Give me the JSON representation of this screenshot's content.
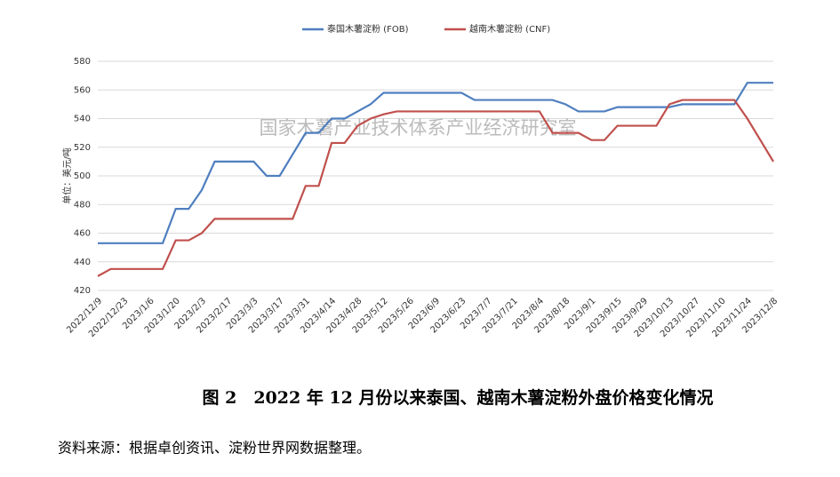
{
  "chart_data": {
    "type": "line",
    "watermark": "国家木薯产业技术体系产业经济研究室",
    "ylabel": "单位：美元/吨",
    "caption": "图 2　2022 年 12 月份以来泰国、越南木薯淀粉外盘价格变化情况",
    "source": "资料来源：根据卓创资讯、淀粉世界网数据整理。",
    "categories": [
      "2022/12/9",
      null,
      "2022/12/23",
      null,
      "2023/1/6",
      null,
      "2023/1/20",
      null,
      "2023/2/3",
      null,
      "2023/2/17",
      null,
      "2023/3/3",
      null,
      "2023/3/17",
      null,
      "2023/3/31",
      null,
      "2023/4/14",
      null,
      "2023/4/28",
      null,
      "2023/5/12",
      null,
      "2023/5/26",
      null,
      "2023/6/9",
      null,
      "2023/6/23",
      null,
      "2023/7/7",
      null,
      "2023/7/21",
      null,
      "2023/8/4",
      null,
      "2023/8/18",
      null,
      "2023/9/1",
      null,
      "2023/9/15",
      null,
      "2023/9/29",
      null,
      "2023/10/13",
      null,
      "2023/10/27",
      null,
      "2023/11/10",
      null,
      "2023/11/24",
      null,
      "2023/12/8"
    ],
    "series": [
      {
        "name": "泰国木薯淀粉 (FOB)",
        "color": "#4f7fbf",
        "values": [
          453,
          453,
          453,
          453,
          453,
          453,
          477,
          477,
          490,
          510,
          510,
          510,
          510,
          500,
          500,
          515,
          530,
          530,
          540,
          540,
          545,
          550,
          558,
          558,
          558,
          558,
          558,
          558,
          558,
          553,
          553,
          553,
          553,
          553,
          553,
          553,
          550,
          545,
          545,
          545,
          548,
          548,
          548,
          548,
          548,
          550,
          550,
          550,
          550,
          550,
          565,
          565,
          565
        ]
      },
      {
        "name": "越南木薯淀粉 (CNF)",
        "color": "#c0504d",
        "values": [
          430,
          435,
          435,
          435,
          435,
          435,
          455,
          455,
          460,
          470,
          470,
          470,
          470,
          470,
          470,
          470,
          493,
          493,
          523,
          523,
          535,
          540,
          543,
          545,
          545,
          545,
          545,
          545,
          545,
          545,
          545,
          545,
          545,
          545,
          545,
          530,
          530,
          530,
          525,
          525,
          535,
          535,
          535,
          535,
          550,
          553,
          553,
          553,
          553,
          553,
          540,
          525,
          510
        ]
      }
    ],
    "ylim": [
      420,
      580
    ],
    "yticks": [
      420,
      440,
      460,
      480,
      500,
      520,
      540,
      560,
      580
    ],
    "grid": true
  }
}
